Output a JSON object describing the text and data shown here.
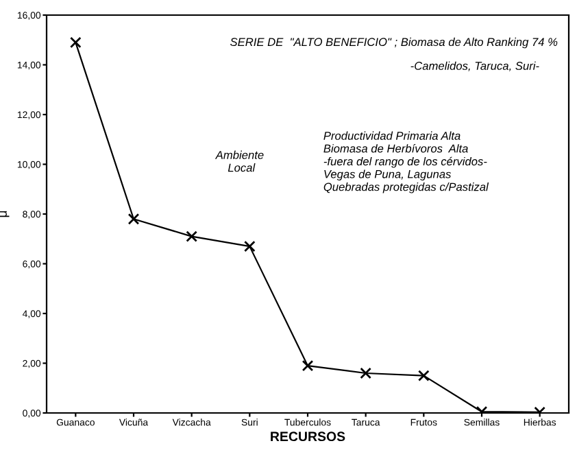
{
  "chart_data": {
    "type": "line",
    "xlabel": "RECURSOS",
    "ylabel": "μ",
    "categories": [
      "Guanaco",
      "Vicuña",
      "Vizcacha",
      "Suri",
      "Tuberculos",
      "Taruca",
      "Frutos",
      "Semillas",
      "Hierbas"
    ],
    "values": [
      14.9,
      7.8,
      7.1,
      6.7,
      1.9,
      1.6,
      1.5,
      0.05,
      0.03
    ],
    "color": "#000000",
    "marker": "cross",
    "line_style": "solid",
    "grid": false,
    "legend": false,
    "ylim": [
      0,
      16
    ],
    "yticks": [
      {
        "value": 0,
        "label": "0,00"
      },
      {
        "value": 2,
        "label": "2,00"
      },
      {
        "value": 4,
        "label": "4,00"
      },
      {
        "value": 6,
        "label": "6,00"
      },
      {
        "value": 8,
        "label": "8,00"
      },
      {
        "value": 10,
        "label": "10,00"
      },
      {
        "value": 12,
        "label": "12,00"
      },
      {
        "value": 14,
        "label": "14,00"
      },
      {
        "value": 16,
        "label": "16,00"
      }
    ],
    "annotations": [
      "SERIE DE  \"ALTO BENEFICIO\" ; Biomasa de Alto Ranking 74 %",
      "-Camelidos, Taruca, Suri-",
      "Ambiente\n Local",
      "Productividad Primaria Alta\nBiomasa de Herbívoros  Alta\n-fuera del rango de los cérvidos-\nVegas de Puna, Lagunas\nQuebradas protegidas c/Pastizal"
    ]
  }
}
